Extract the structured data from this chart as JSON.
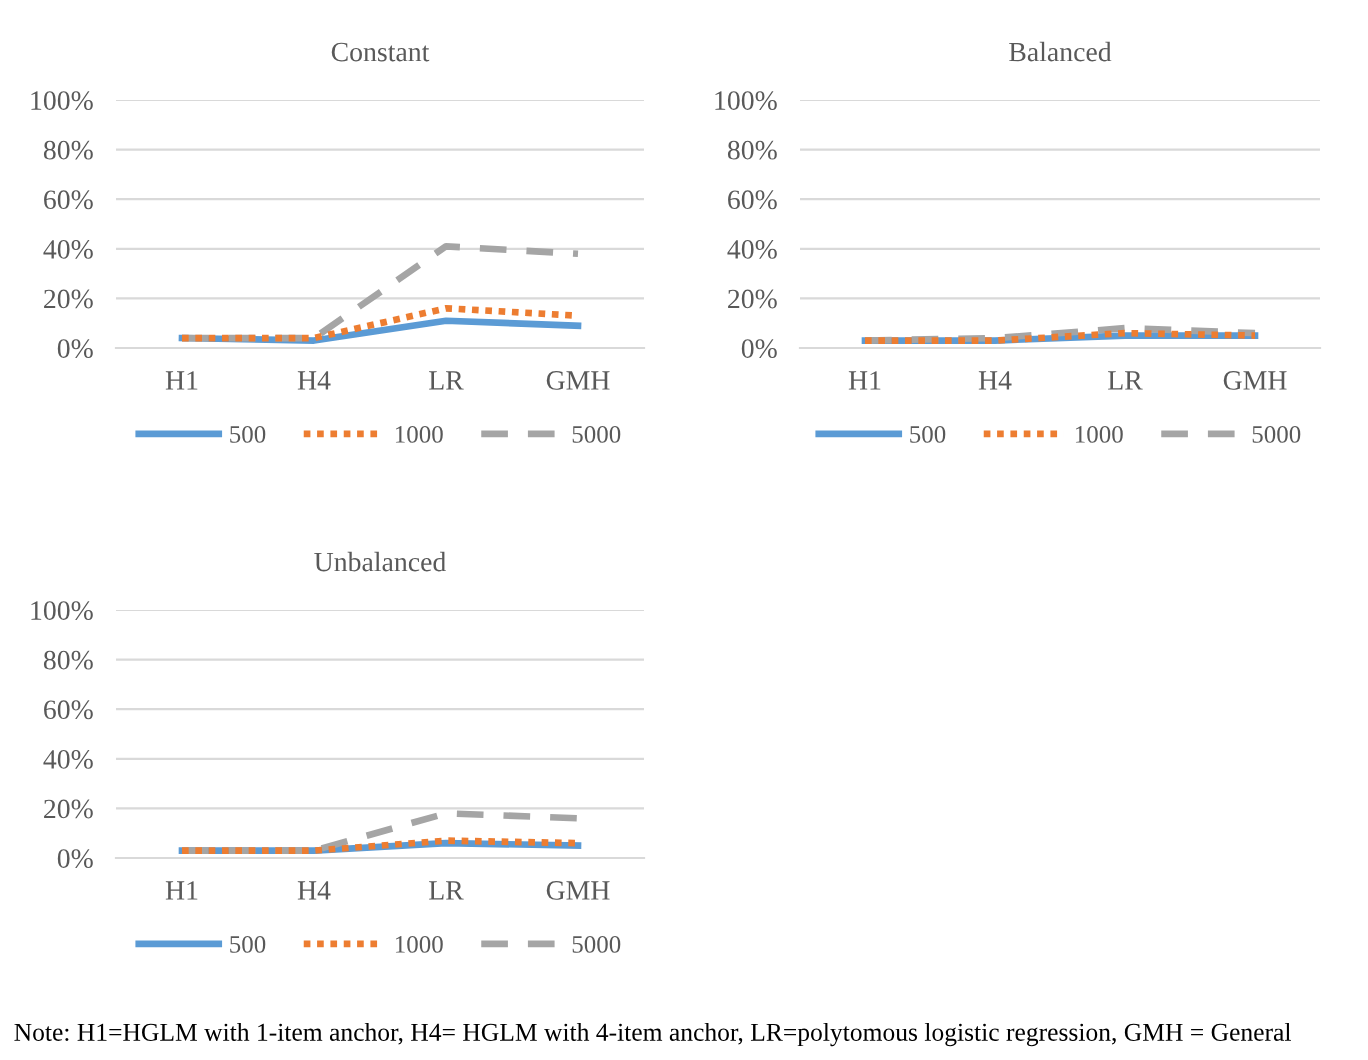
{
  "chart_data": [
    {
      "type": "line",
      "title": "Constant",
      "categories": [
        "H1",
        "H4",
        "LR",
        "GMH"
      ],
      "ylim": [
        0,
        100
      ],
      "yticks": [
        {
          "value": 0,
          "label": "0%"
        },
        {
          "value": 20,
          "label": "20%"
        },
        {
          "value": 40,
          "label": "40%"
        },
        {
          "value": 60,
          "label": "60%"
        },
        {
          "value": 80,
          "label": "80%"
        },
        {
          "value": 100,
          "label": "100%"
        }
      ],
      "grid": "y",
      "legend": "bottom",
      "marker": "none",
      "series": [
        {
          "name": "500",
          "color": "#5b9bd5",
          "line_style": "solid",
          "values": [
            4,
            3,
            11,
            9
          ]
        },
        {
          "name": "1000",
          "color": "#ed7d31",
          "line_style": "dotted",
          "values": [
            4,
            4,
            16,
            13
          ]
        },
        {
          "name": "5000",
          "color": "#a5a5a5",
          "line_style": "dashed",
          "values": [
            4,
            4,
            41,
            38
          ]
        }
      ]
    },
    {
      "type": "line",
      "title": "Balanced",
      "categories": [
        "H1",
        "H4",
        "LR",
        "GMH"
      ],
      "ylim": [
        0,
        100
      ],
      "yticks": [
        {
          "value": 0,
          "label": "0%"
        },
        {
          "value": 20,
          "label": "20%"
        },
        {
          "value": 40,
          "label": "40%"
        },
        {
          "value": 60,
          "label": "60%"
        },
        {
          "value": 80,
          "label": "80%"
        },
        {
          "value": 100,
          "label": "100%"
        }
      ],
      "grid": "y",
      "legend": "bottom",
      "marker": "none",
      "series": [
        {
          "name": "500",
          "color": "#5b9bd5",
          "line_style": "solid",
          "values": [
            3,
            3,
            5,
            5
          ]
        },
        {
          "name": "1000",
          "color": "#ed7d31",
          "line_style": "dotted",
          "values": [
            3,
            3,
            6,
            5
          ]
        },
        {
          "name": "5000",
          "color": "#a5a5a5",
          "line_style": "dashed",
          "values": [
            3,
            4,
            8,
            6
          ]
        }
      ]
    },
    {
      "type": "line",
      "title": "Unbalanced",
      "categories": [
        "H1",
        "H4",
        "LR",
        "GMH"
      ],
      "ylim": [
        0,
        100
      ],
      "yticks": [
        {
          "value": 0,
          "label": "0%"
        },
        {
          "value": 20,
          "label": "20%"
        },
        {
          "value": 40,
          "label": "40%"
        },
        {
          "value": 60,
          "label": "60%"
        },
        {
          "value": 80,
          "label": "80%"
        },
        {
          "value": 100,
          "label": "100%"
        }
      ],
      "grid": "y",
      "legend": "bottom",
      "marker": "none",
      "series": [
        {
          "name": "500",
          "color": "#5b9bd5",
          "line_style": "solid",
          "values": [
            3,
            3,
            6,
            5
          ]
        },
        {
          "name": "1000",
          "color": "#ed7d31",
          "line_style": "dotted",
          "values": [
            3,
            3,
            7,
            6
          ]
        },
        {
          "name": "5000",
          "color": "#a5a5a5",
          "line_style": "dashed",
          "values": [
            3,
            3,
            18,
            16
          ]
        }
      ],
      "annotations": [
        "Note: H1=HGLM with 1-item anchor, H4= HGLM with 4-item anchor, LR=polytomous logistic regression, GMH = General"
      ]
    }
  ]
}
